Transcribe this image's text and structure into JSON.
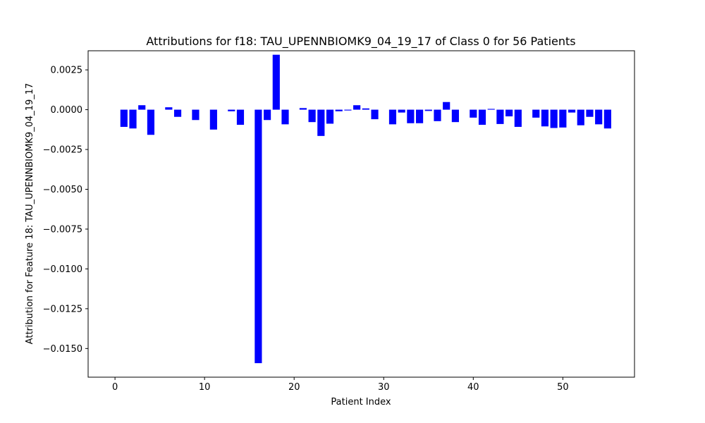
{
  "chart_data": {
    "type": "bar",
    "title": "Attributions for f18: TAU_UPENNBIOMK9_04_19_17 of Class 0 for 56 Patients",
    "xlabel": "Patient Index",
    "ylabel": "Attribution for Feature 18: TAU_UPENNBIOMK9_04_19_17",
    "xlim": [
      -3.0,
      58.0
    ],
    "ylim": [
      -0.0168,
      0.0037
    ],
    "xticks": [
      0,
      10,
      20,
      30,
      40,
      50
    ],
    "xtick_labels": [
      "0",
      "10",
      "20",
      "30",
      "40",
      "50"
    ],
    "yticks": [
      0.0025,
      0.0,
      -0.0025,
      -0.005,
      -0.0075,
      -0.01,
      -0.0125,
      -0.015
    ],
    "ytick_labels": [
      "0.0025",
      "0.0000",
      "−0.0025",
      "−0.0050",
      "−0.0075",
      "−0.0100",
      "−0.0125",
      "−0.0150"
    ],
    "bar_color": "#0000ff",
    "grid": false,
    "x": [
      0,
      1,
      2,
      3,
      4,
      5,
      6,
      7,
      8,
      9,
      10,
      11,
      12,
      13,
      14,
      15,
      16,
      17,
      18,
      19,
      20,
      21,
      22,
      23,
      24,
      25,
      26,
      27,
      28,
      29,
      30,
      31,
      32,
      33,
      34,
      35,
      36,
      37,
      38,
      39,
      40,
      41,
      42,
      43,
      44,
      45,
      46,
      47,
      48,
      49,
      50,
      51,
      52,
      53,
      54,
      55
    ],
    "values": [
      0,
      -0.00108,
      -0.00118,
      0.00028,
      -0.00158,
      0,
      0.00015,
      -0.00045,
      0,
      -0.00065,
      0,
      -0.00125,
      0,
      -0.0001,
      -0.00095,
      0,
      -0.01592,
      -0.00065,
      0.00345,
      -0.00092,
      0,
      0.0001,
      -0.00078,
      -0.00165,
      -0.00088,
      -0.0001,
      -5e-05,
      0.00028,
      8e-05,
      -0.0006,
      0,
      -0.00092,
      -0.00018,
      -0.00085,
      -0.00085,
      -8e-05,
      -0.00072,
      0.00048,
      -0.00078,
      0,
      -0.0005,
      -0.00095,
      5e-05,
      -0.0009,
      -0.00042,
      -0.00108,
      0,
      -0.0005,
      -0.00105,
      -0.00115,
      -0.00112,
      -0.00018,
      -0.00098,
      -0.00045,
      -0.00092,
      -0.00118
    ]
  }
}
